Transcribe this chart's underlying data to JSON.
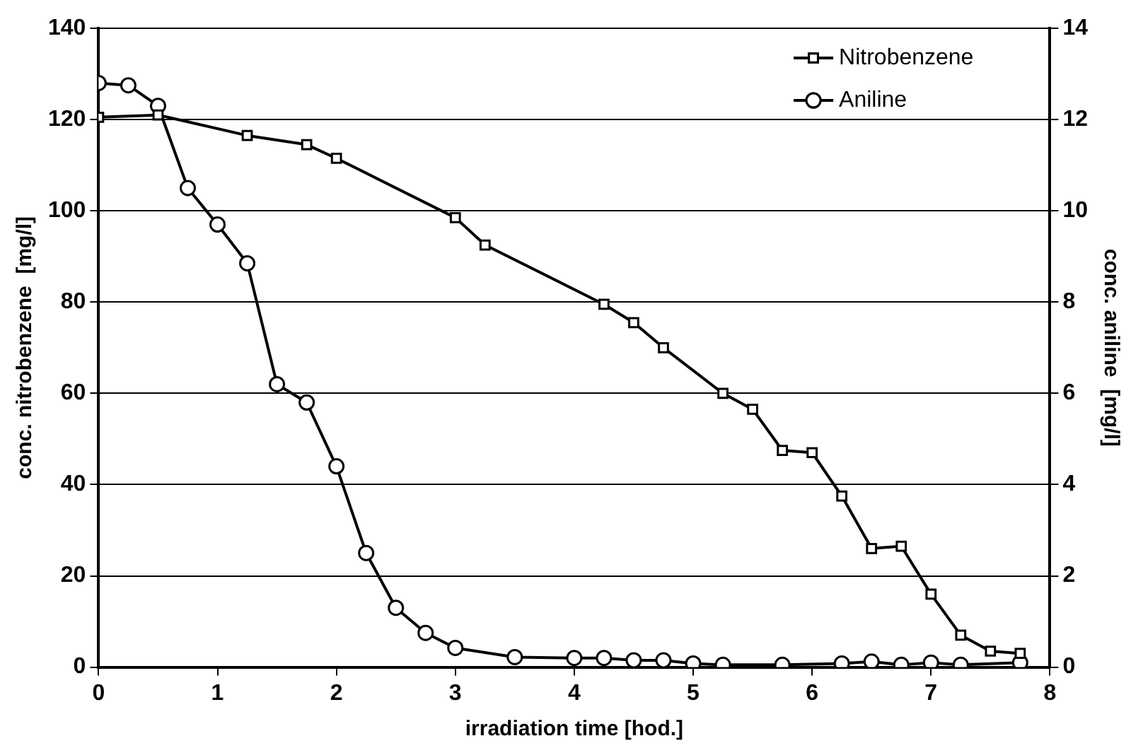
{
  "chart_data": {
    "type": "line",
    "xlabel": "irradiation time [hod.]",
    "ylabel": "conc. nitrobenzene  [mg/l]",
    "y2label": "conc. aniline  [mg/l]",
    "xlim": [
      0,
      8
    ],
    "xticks": [
      0,
      1,
      2,
      3,
      4,
      5,
      6,
      7,
      8
    ],
    "ylim": [
      0,
      140
    ],
    "yticks": [
      0,
      20,
      40,
      60,
      80,
      100,
      120,
      140
    ],
    "y2lim": [
      0,
      14
    ],
    "y2ticks": [
      0,
      2,
      4,
      6,
      8,
      10,
      12,
      14
    ],
    "grid": "y",
    "legend": "top right",
    "line_style": "solid",
    "series": [
      {
        "name": "Nitrobenzene",
        "color": "#000000",
        "marker": "square",
        "x": [
          0,
          0.5,
          1.25,
          1.75,
          2,
          3,
          3.25,
          4.25,
          4.5,
          4.75,
          5.25,
          5.5,
          5.75,
          6,
          6.25,
          6.5,
          6.75,
          7,
          7.25,
          7.5,
          7.75
        ],
        "values": [
          120.5,
          121,
          116.5,
          114.5,
          111.5,
          98.5,
          92.5,
          79.5,
          75.5,
          70,
          60,
          56.5,
          47.5,
          47,
          37.5,
          26,
          26.5,
          16,
          7,
          3.5,
          3
        ]
      },
      {
        "name": "Aniline",
        "color": "#000000",
        "marker": "circle",
        "axis": "y2",
        "x": [
          0,
          0.25,
          0.5,
          0.75,
          1,
          1.25,
          1.5,
          1.75,
          2,
          2.25,
          2.5,
          2.75,
          3,
          3.5,
          4,
          4.25,
          4.5,
          4.75,
          5,
          5.25,
          5.75,
          6.25,
          6.5,
          6.75,
          7,
          7.25,
          7.75
        ],
        "values": [
          12.8,
          12.75,
          12.3,
          10.5,
          9.7,
          8.85,
          6.2,
          5.8,
          4.4,
          2.5,
          1.3,
          0.75,
          0.42,
          0.22,
          0.2,
          0.2,
          0.15,
          0.15,
          0.08,
          0.05,
          0.05,
          0.08,
          0.12,
          0.05,
          0.1,
          0.05,
          0.1
        ]
      }
    ]
  }
}
